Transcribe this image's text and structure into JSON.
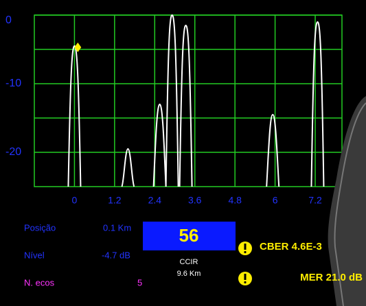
{
  "chart_data": {
    "type": "echo",
    "x": [
      0,
      1.6,
      2.55,
      2.92,
      3.33,
      5.93,
      7.27
    ],
    "values": [
      -4.5,
      -19.5,
      -13,
      0,
      -1.5,
      -14.5,
      -1
    ],
    "color": "#ffffff",
    "xlim": [
      -1.2,
      8.0
    ],
    "xticks": [
      0,
      1.2,
      2.4,
      3.6,
      4.8,
      6,
      7.2
    ],
    "ylim": [
      -25,
      0
    ],
    "yticks": [
      0,
      -10,
      -20
    ],
    "minor_yticks": [
      -5,
      -15
    ],
    "grid": true,
    "grid_color": "#22cc22",
    "tick_color": "#2233ff",
    "marker": {
      "x": 0.1,
      "y": -4.7,
      "color": "#ffee00"
    }
  },
  "info": {
    "position_label": "Posição",
    "position_value": "0.1 Km",
    "level_label": "Nível",
    "level_value": "-4.7 dB",
    "echoes_label": "N. ecos",
    "echoes_value": "5",
    "channel": "56",
    "standard": "CCIR",
    "distance": "9.6 Km",
    "cber": "CBER 4.6E-3",
    "mer": "MER 21.0 dB"
  }
}
